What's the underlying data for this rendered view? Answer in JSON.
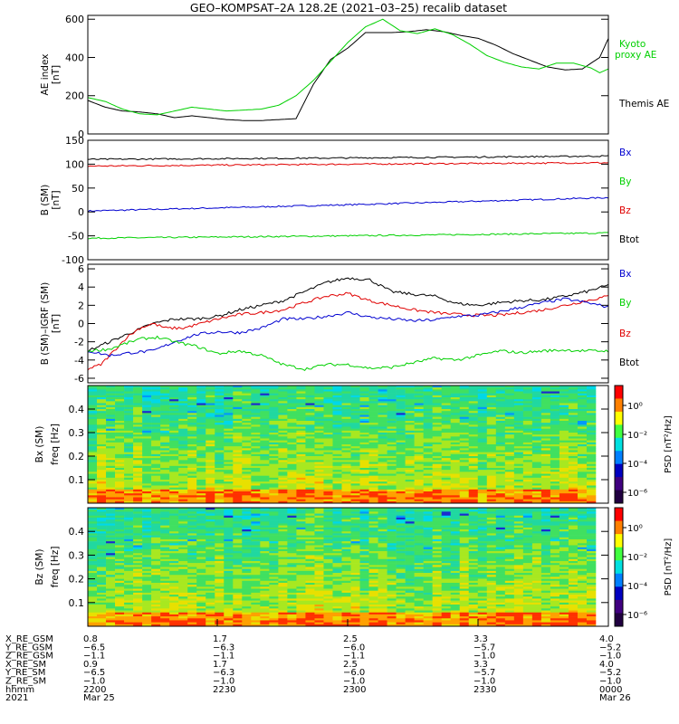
{
  "title": "GEO–KOMPSAT–2A 128.2E (2021–03–25) recalib dataset",
  "colors": {
    "black": "#000000",
    "red": "#e00000",
    "green": "#00d000",
    "blue": "#0000d0"
  },
  "chart_data": [
    {
      "type": "line",
      "name": "ae",
      "ylabel": [
        "AE index",
        "[nT]"
      ],
      "ylim": [
        0,
        620
      ],
      "yticks": [
        0,
        200,
        400,
        600
      ],
      "xlim": [
        0,
        120
      ],
      "legend": [
        {
          "text": "Kyoto",
          "color": "green"
        },
        {
          "text": "proxy AE",
          "color": "green"
        },
        {
          "text": "Themis AE",
          "color": "black"
        }
      ],
      "series": [
        {
          "name": "Themis AE",
          "color": "black",
          "x": [
            0,
            4,
            8,
            12,
            16,
            20,
            24,
            28,
            32,
            36,
            40,
            44,
            48,
            52,
            56,
            60,
            64,
            66,
            70,
            74,
            78,
            82,
            86,
            90,
            94,
            98,
            102,
            106,
            110,
            114,
            118,
            120
          ],
          "y": [
            175,
            140,
            120,
            115,
            105,
            85,
            95,
            85,
            75,
            70,
            70,
            75,
            80,
            260,
            390,
            450,
            530,
            530,
            530,
            535,
            545,
            535,
            515,
            500,
            465,
            420,
            385,
            350,
            335,
            340,
            400,
            500
          ]
        },
        {
          "name": "Kyoto proxy AE",
          "color": "green",
          "x": [
            0,
            4,
            8,
            12,
            16,
            20,
            24,
            28,
            32,
            36,
            40,
            44,
            48,
            52,
            56,
            60,
            64,
            68,
            72,
            76,
            80,
            84,
            88,
            92,
            96,
            100,
            104,
            108,
            112,
            116,
            118,
            120
          ],
          "y": [
            190,
            170,
            130,
            105,
            100,
            120,
            140,
            130,
            120,
            125,
            130,
            150,
            200,
            280,
            380,
            480,
            560,
            600,
            540,
            525,
            550,
            520,
            470,
            410,
            375,
            350,
            340,
            370,
            370,
            345,
            320,
            340
          ]
        }
      ]
    },
    {
      "type": "line",
      "name": "b-sm",
      "ylabel": [
        "B (SM)",
        "[nT]"
      ],
      "ylim": [
        -100,
        150
      ],
      "yticks": [
        -100,
        -50,
        0,
        50,
        100,
        150
      ],
      "xlim": [
        0,
        120
      ],
      "legend": [
        {
          "text": "Bx",
          "color": "blue"
        },
        {
          "text": "By",
          "color": "green"
        },
        {
          "text": "Bz",
          "color": "red"
        },
        {
          "text": "Btot",
          "color": "black"
        }
      ],
      "series": [
        {
          "name": "Bx",
          "color": "blue",
          "x": [
            0,
            60,
            120
          ],
          "y": [
            2,
            15,
            30
          ]
        },
        {
          "name": "By",
          "color": "green",
          "x": [
            0,
            60,
            120
          ],
          "y": [
            -55,
            -50,
            -44
          ]
        },
        {
          "name": "Bz",
          "color": "red",
          "x": [
            0,
            60,
            120
          ],
          "y": [
            96,
            100,
            103
          ]
        },
        {
          "name": "Btot",
          "color": "black",
          "x": [
            0,
            60,
            120
          ],
          "y": [
            110,
            113,
            117
          ]
        }
      ]
    },
    {
      "type": "line",
      "name": "b-minus-igrf",
      "ylabel": [
        "B (SM)–IGRF (SM)",
        "[nT]"
      ],
      "ylim": [
        -6.5,
        6.5
      ],
      "yticks": [
        -6,
        -4,
        -2,
        0,
        2,
        4,
        6
      ],
      "xlim": [
        0,
        120
      ],
      "legend": [
        {
          "text": "Bx",
          "color": "blue"
        },
        {
          "text": "By",
          "color": "green"
        },
        {
          "text": "Bz",
          "color": "red"
        },
        {
          "text": "Btot",
          "color": "black"
        }
      ],
      "series": [
        {
          "name": "Btot",
          "color": "black",
          "x": [
            0,
            5,
            10,
            15,
            20,
            25,
            30,
            35,
            40,
            45,
            50,
            55,
            60,
            65,
            70,
            75,
            80,
            85,
            90,
            95,
            100,
            105,
            110,
            115,
            120
          ],
          "y": [
            -3,
            -2,
            -1,
            0,
            0.5,
            0.5,
            0.8,
            1.5,
            2,
            2.5,
            3.5,
            4.5,
            5,
            4.8,
            3.5,
            3.2,
            3,
            2.2,
            2,
            2.3,
            2.5,
            2.6,
            3,
            3.5,
            4.2
          ]
        },
        {
          "name": "Bz",
          "color": "red",
          "x": [
            0,
            3,
            6,
            9,
            12,
            15,
            18,
            22,
            26,
            30,
            35,
            40,
            45,
            50,
            55,
            60,
            65,
            70,
            75,
            80,
            85,
            90,
            95,
            100,
            105,
            110,
            115,
            120
          ],
          "y": [
            -5,
            -4.5,
            -3,
            -1.5,
            -0.5,
            0,
            -0.5,
            -0.5,
            0,
            0.5,
            1,
            1.2,
            1.5,
            2.3,
            3,
            3.3,
            2.5,
            2,
            1.5,
            1.2,
            1,
            0.9,
            0.9,
            1.2,
            1.5,
            2,
            2.5,
            3
          ]
        },
        {
          "name": "Bx",
          "color": "blue",
          "x": [
            0,
            5,
            10,
            15,
            20,
            25,
            30,
            35,
            40,
            45,
            50,
            55,
            60,
            65,
            70,
            75,
            80,
            85,
            90,
            95,
            100,
            105,
            110,
            115,
            120
          ],
          "y": [
            -3,
            -3.5,
            -3.2,
            -3,
            -2,
            -1.2,
            -0.9,
            -1,
            -0.5,
            0.5,
            0.5,
            0.8,
            1.2,
            0.7,
            0.5,
            0.3,
            0.4,
            0.8,
            0.9,
            1.3,
            1.8,
            2.3,
            2.7,
            2.3,
            1.8
          ]
        },
        {
          "name": "By",
          "color": "green",
          "x": [
            0,
            5,
            8,
            12,
            16,
            20,
            25,
            30,
            35,
            40,
            45,
            50,
            55,
            60,
            65,
            70,
            75,
            80,
            85,
            90,
            95,
            100,
            105,
            110,
            115,
            120
          ],
          "y": [
            -3,
            -2.8,
            -2.3,
            -1.7,
            -1.5,
            -2,
            -2.5,
            -3.3,
            -3,
            -3.5,
            -4.5,
            -5,
            -4.5,
            -4.5,
            -4.9,
            -4.8,
            -4.3,
            -3.8,
            -4,
            -3.5,
            -3,
            -3.2,
            -3,
            -2.9,
            -3,
            -3
          ]
        }
      ]
    },
    {
      "type": "heatmap",
      "name": "bx-spectrogram",
      "ylabel": [
        "Bx (SM)",
        "freq [Hz]"
      ],
      "yticks": [
        0.1,
        0.2,
        0.3,
        0.4
      ],
      "ylim": [
        0,
        0.5
      ],
      "colorbar": {
        "label": "PSD [nT²/Hz]",
        "ticks": [
          "10⁰",
          "10⁻²",
          "10⁻⁴",
          "10⁻⁶"
        ]
      }
    },
    {
      "type": "heatmap",
      "name": "bz-spectrogram",
      "ylabel": [
        "Bz (SM)",
        "freq [Hz]"
      ],
      "yticks": [
        0.1,
        0.2,
        0.3,
        0.4
      ],
      "ylim": [
        0,
        0.5
      ],
      "colorbar": {
        "label": "PSD [nT²/Hz]",
        "ticks": [
          "10⁰",
          "10⁻²",
          "10⁻⁴",
          "10⁻⁶"
        ]
      }
    }
  ],
  "ephemeris": {
    "row_labels": [
      "X_RE_GSM",
      "Y_RE_GSM",
      "Z_RE_GSM",
      "X_RE_SM",
      "Y_RE_SM",
      "Z_RE_SM",
      "hhmm",
      "2021"
    ],
    "columns": [
      [
        "0.8",
        "−6.5",
        "−1.1",
        "0.9",
        "−6.5",
        "−1.0",
        "2200",
        "Mar 25"
      ],
      [
        "1.7",
        "−6.3",
        "−1.1",
        "1.7",
        "−6.3",
        "−1.0",
        "2230",
        ""
      ],
      [
        "2.5",
        "−6.0",
        "−1.1",
        "2.5",
        "−6.0",
        "−1.0",
        "2300",
        ""
      ],
      [
        "3.3",
        "−5.7",
        "−1.0",
        "3.3",
        "−5.7",
        "−1.0",
        "2330",
        ""
      ],
      [
        "4.0",
        "−5.2",
        "−1.0",
        "4.0",
        "−5.2",
        "−1.0",
        "0000",
        "Mar 26"
      ]
    ]
  }
}
